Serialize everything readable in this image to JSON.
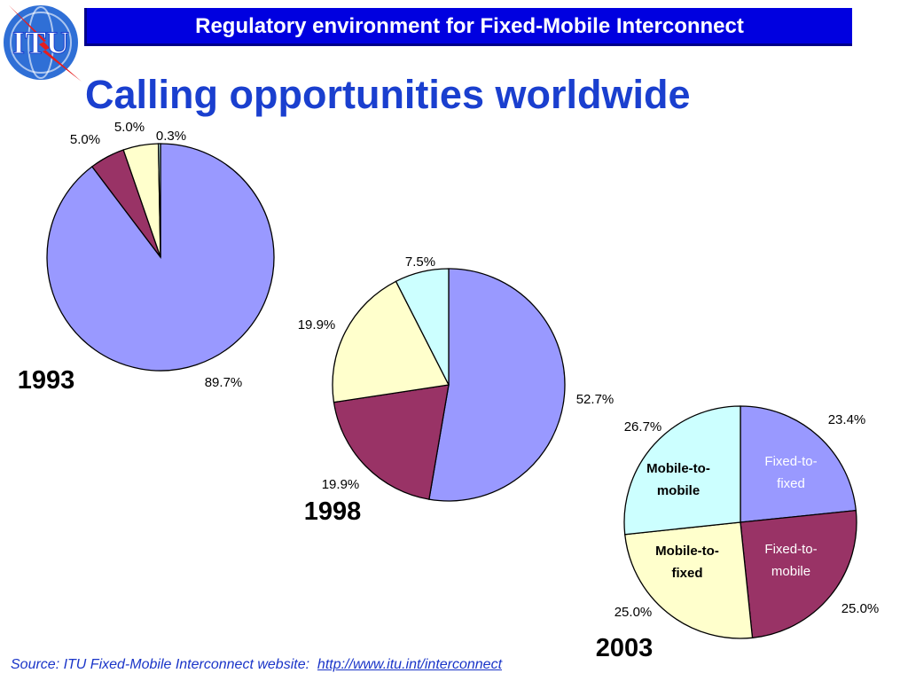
{
  "header": {
    "logo_text": "ITU",
    "title": "Regulatory environment for Fixed-Mobile Interconnect"
  },
  "slide": {
    "title": "Calling opportunities worldwide"
  },
  "source": {
    "text": "Source: ITU Fixed-Mobile Interconnect website:",
    "link": "http://www.itu.int/interconnect"
  },
  "colors": {
    "fixed_to_fixed": "#9999ff",
    "fixed_to_mobile": "#993366",
    "mobile_to_fixed": "#ffffcc",
    "mobile_to_mobile": "#ccffff",
    "header_bar": "#0000e0",
    "title": "#1a3fcf"
  },
  "chart_data": [
    {
      "type": "pie",
      "year_label": "1993",
      "slices": [
        {
          "value": 89.7,
          "label": "89.7%",
          "color": "#9999ff"
        },
        {
          "value": 5.0,
          "label": "5.0%",
          "color": "#993366"
        },
        {
          "value": 5.0,
          "label": "5.0%",
          "color": "#ffffcc"
        },
        {
          "value": 0.3,
          "label": "0.3%",
          "color": "#ccffff"
        }
      ]
    },
    {
      "type": "pie",
      "year_label": "1998",
      "slices": [
        {
          "value": 52.7,
          "label": "52.7%",
          "color": "#9999ff"
        },
        {
          "value": 19.9,
          "label": "19.9%",
          "color": "#993366"
        },
        {
          "value": 19.9,
          "label": "19.9%",
          "color": "#ffffcc"
        },
        {
          "value": 7.5,
          "label": "7.5%",
          "color": "#ccffff"
        }
      ]
    },
    {
      "type": "pie",
      "year_label": "2003",
      "slices": [
        {
          "value": 23.4,
          "label": "23.4%",
          "color": "#9999ff",
          "name_lines": [
            "Fixed-to-",
            "fixed"
          ],
          "name_color": "#ffffff"
        },
        {
          "value": 25.0,
          "label": "25.0%",
          "color": "#993366",
          "name_lines": [
            "Fixed-to-",
            "mobile"
          ],
          "name_color": "#ffffff"
        },
        {
          "value": 25.0,
          "label": "25.0%",
          "color": "#ffffcc",
          "name_lines": [
            "Mobile-to-",
            "fixed"
          ],
          "name_color": "#000000"
        },
        {
          "value": 26.7,
          "label": "26.7%",
          "color": "#ccffff",
          "name_lines": [
            "Mobile-to-",
            "mobile"
          ],
          "name_color": "#000000"
        }
      ]
    }
  ]
}
